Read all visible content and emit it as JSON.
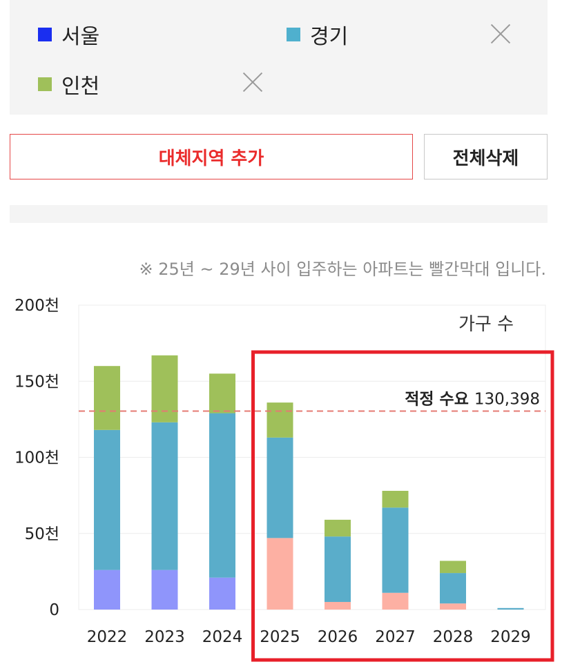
{
  "regions": [
    {
      "name": "서울",
      "color": "#1a2ef0",
      "removable": false
    },
    {
      "name": "경기",
      "color": "#4fb0ce",
      "removable": true
    },
    {
      "name": "인천",
      "color": "#9fc05a",
      "removable": true
    }
  ],
  "buttons": {
    "add_region": "대체지역 추가",
    "delete_all": "전체삭제"
  },
  "note": "※ 25년 ~ 29년 사이 입주하는 아파트는 빨간막대 입니다.",
  "chart_data": {
    "type": "bar",
    "stacked": true,
    "title": "가구 수",
    "categories": [
      "2022",
      "2023",
      "2024",
      "2025",
      "2026",
      "2027",
      "2028",
      "2029"
    ],
    "series": [
      {
        "name": "서울",
        "values": [
          26000,
          26000,
          21000,
          47000,
          5000,
          11000,
          4000,
          0
        ]
      },
      {
        "name": "경기",
        "values": [
          92000,
          97000,
          108000,
          66000,
          43000,
          56000,
          20000,
          1000
        ]
      },
      {
        "name": "인천",
        "values": [
          42000,
          44000,
          26000,
          23000,
          11000,
          11000,
          8000,
          0
        ]
      }
    ],
    "highlight_categories": [
      "2025",
      "2026",
      "2027",
      "2028",
      "2029"
    ],
    "y_ticks": [
      {
        "value": 0,
        "label": "0"
      },
      {
        "value": 50000,
        "label": "50천"
      },
      {
        "value": 100000,
        "label": "100천"
      },
      {
        "value": 150000,
        "label": "150천"
      },
      {
        "value": 200000,
        "label": "200천"
      }
    ],
    "ylim": [
      0,
      200000
    ],
    "reference_line": {
      "label": "적정 수요",
      "value": 130398,
      "value_label": "130,398",
      "color": "#e57a72"
    },
    "colors": {
      "past": [
        "#8f95fb",
        "#5aadca",
        "#9fc05a"
      ],
      "future": [
        "#fdb0a3",
        "#5aadca",
        "#9fc05a"
      ],
      "highlight_box": "#e8202a"
    },
    "grid": true
  }
}
